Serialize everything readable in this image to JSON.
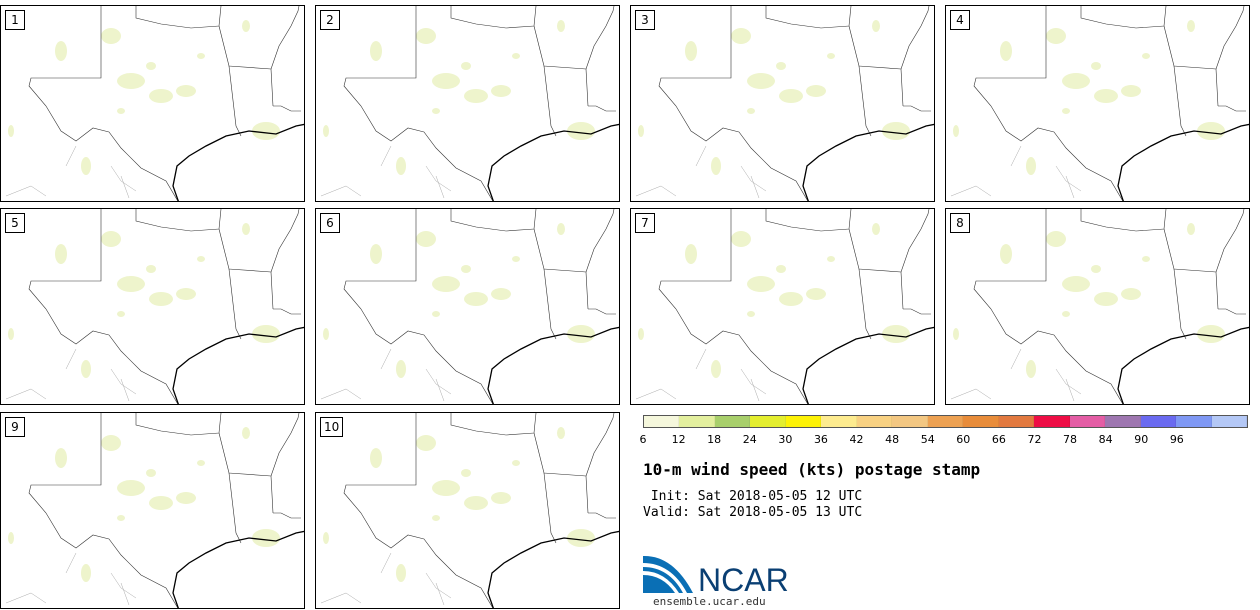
{
  "panels": [
    {
      "label": "1"
    },
    {
      "label": "2"
    },
    {
      "label": "3"
    },
    {
      "label": "4"
    },
    {
      "label": "5"
    },
    {
      "label": "6"
    },
    {
      "label": "7"
    },
    {
      "label": "8"
    },
    {
      "label": "9"
    },
    {
      "label": "10"
    }
  ],
  "legend": {
    "ticks": [
      "6",
      "12",
      "18",
      "24",
      "30",
      "36",
      "42",
      "48",
      "54",
      "60",
      "66",
      "72",
      "78",
      "84",
      "90",
      "96"
    ],
    "colors": [
      "#f5f7dc",
      "#e3ef9e",
      "#a8cf6b",
      "#e4ee2f",
      "#fdf206",
      "#fdeb8f",
      "#f8d182",
      "#f3c782",
      "#eda152",
      "#e88c3a",
      "#e2793f",
      "#ee0d45",
      "#e45da5",
      "#9e76b0",
      "#6a6af0",
      "#7f98f4",
      "#b4c8f6"
    ]
  },
  "title": "10-m wind speed (kts) postage stamp",
  "init": " Init: Sat 2018-05-05 12 UTC",
  "valid": "Valid: Sat 2018-05-05 13 UTC",
  "logo": {
    "text": "NCAR",
    "url": "ensemble.ucar.edu"
  }
}
